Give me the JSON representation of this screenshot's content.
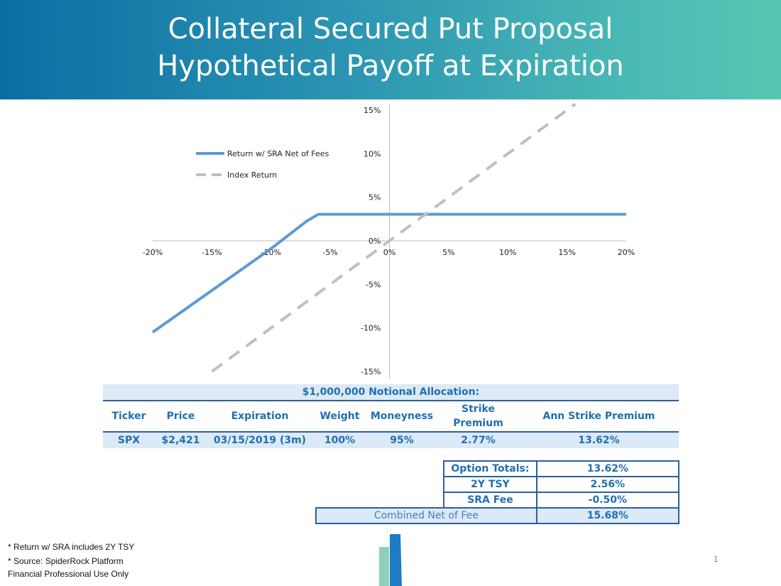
{
  "header": {
    "title_line1": "Collateral Secured Put Proposal",
    "title_line2": "Hypothetical Payoff at Expiration"
  },
  "chart_data": {
    "type": "line",
    "xlim": [
      -0.2,
      0.2
    ],
    "ylim": [
      -0.15,
      0.15
    ],
    "x_ticks": [
      "-20%",
      "-15%",
      "-10%",
      "-5%",
      "0%",
      "5%",
      "10%",
      "15%",
      "20%"
    ],
    "y_ticks": [
      "15%",
      "10%",
      "5%",
      "0%",
      "-5%",
      "-10%",
      "-15%"
    ],
    "x_tick_values": [
      -0.2,
      -0.15,
      -0.1,
      -0.05,
      0,
      0.05,
      0.1,
      0.15,
      0.2
    ],
    "y_tick_values": [
      0.15,
      0.1,
      0.05,
      0,
      -0.05,
      -0.1,
      -0.15
    ],
    "grid": false,
    "legend_position": "top-left",
    "series": [
      {
        "name": "Return w/ SRA Net of Fees",
        "color": "#5b9bd5",
        "style": "solid",
        "points": [
          [
            -0.2,
            -0.105
          ],
          [
            -0.1,
            -0.009
          ],
          [
            -0.07,
            0.0225
          ],
          [
            -0.06,
            0.0305
          ],
          [
            0.2,
            0.0305
          ]
        ]
      },
      {
        "name": "Index Return",
        "color": "#bfbfbf",
        "style": "dashed",
        "points": [
          [
            -0.15,
            -0.15
          ],
          [
            0.157,
            0.157
          ]
        ]
      }
    ]
  },
  "allocation": {
    "heading": "$1,000,000 Notional Allocation:",
    "columns": [
      "Ticker",
      "Price",
      "Expiration",
      "Weight",
      "Moneyness",
      "Strike Premium",
      "Ann Strike Premium"
    ],
    "rows": [
      [
        "SPX",
        "$2,421",
        "03/15/2019 (3m)",
        "100%",
        "95%",
        "2.77%",
        "13.62%"
      ]
    ]
  },
  "totals": {
    "rows": [
      {
        "label": "Option Totals:",
        "value": "13.62%"
      },
      {
        "label": "2Y TSY",
        "value": "2.56%"
      },
      {
        "label": "SRA Fee",
        "value": "-0.50%"
      }
    ],
    "combined_label": "Combined Net of Fee",
    "combined_value": "15.68%"
  },
  "footer": {
    "note1": "* Return w/ SRA includes 2Y TSY",
    "note2": "* Source: SpiderRock Platform",
    "note3": "Financial Professional Use Only",
    "page_number": "1"
  },
  "colors": {
    "table_text": "#1f6fb2",
    "table_fill": "#dce9f6",
    "table_border": "#2d5fa0"
  }
}
